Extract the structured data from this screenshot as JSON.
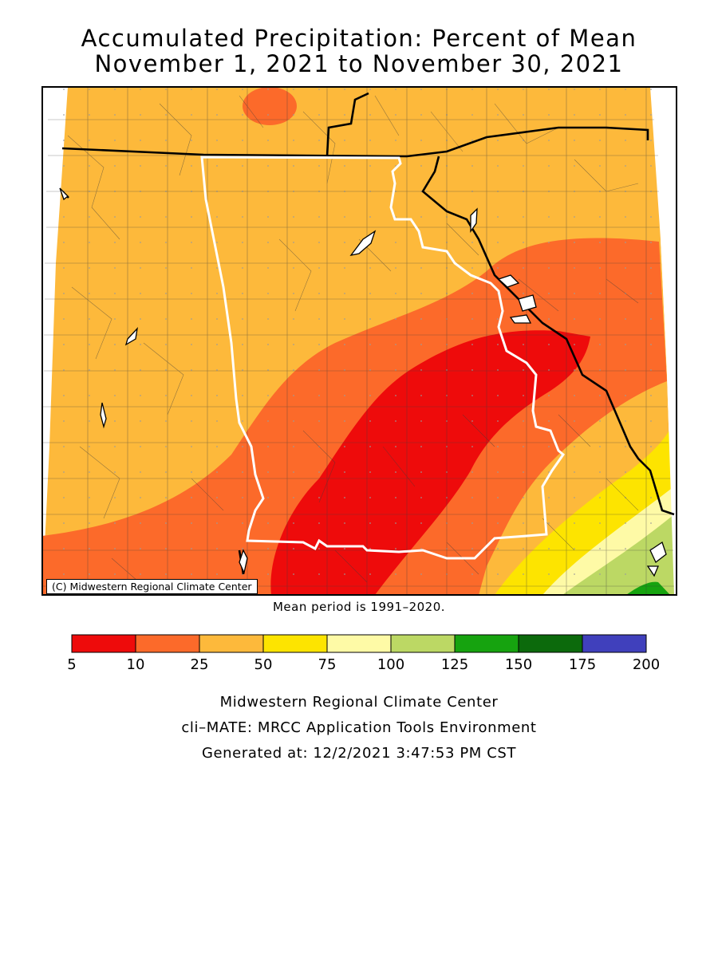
{
  "title": {
    "line1": "Accumulated Precipitation: Percent of Mean",
    "line2": "November 1, 2021 to November 30, 2021"
  },
  "map": {
    "copyright": "(C) Midwestern Regional Climate Center",
    "zone_colors": {
      "25_50": "#fdb93b",
      "10_25": "#fc6a2a",
      "5_10": "#ee0b0b",
      "50_75": "#fde400",
      "75_100": "#fefaa6",
      "100_125": "#bcd864",
      "125_150": "#16a30f"
    }
  },
  "mean_note": "Mean period is 1991–2020.",
  "legend": {
    "bins": [
      {
        "color": "#ee0b0b"
      },
      {
        "color": "#fc6a2a"
      },
      {
        "color": "#fdb93b"
      },
      {
        "color": "#fde400"
      },
      {
        "color": "#fefaa6"
      },
      {
        "color": "#bcd864"
      },
      {
        "color": "#16a30f"
      },
      {
        "color": "#0c6a0c"
      },
      {
        "color": "#4040bc"
      }
    ],
    "ticks": [
      "5",
      "10",
      "25",
      "50",
      "75",
      "100",
      "125",
      "150",
      "175",
      "200"
    ]
  },
  "credits": {
    "line1": "Midwestern Regional Climate Center",
    "line2": "cli–MATE: MRCC Application Tools Environment",
    "line3": "Generated at: 12/2/2021 3:47:53 PM CST"
  }
}
